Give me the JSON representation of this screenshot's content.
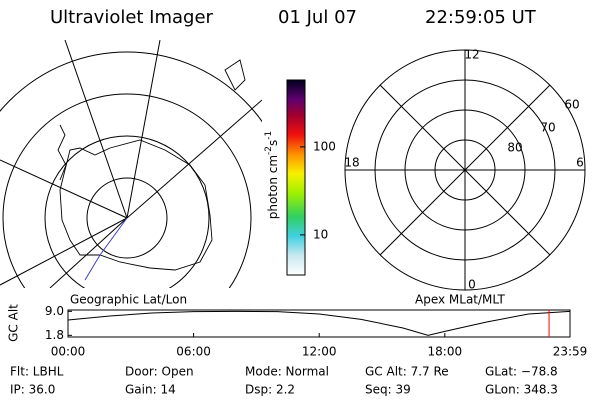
{
  "header": {
    "instrument": "Ultraviolet Imager",
    "date": "01 Jul 07",
    "time": "22:59:05 UT"
  },
  "geographic_panel": {
    "label": "Geographic Lat/Lon"
  },
  "colorbar": {
    "label_parts": [
      "photon cm",
      "-2",
      "s",
      "-1"
    ],
    "lim": [
      3.5,
      575
    ],
    "log": true,
    "ticks": [
      10,
      100
    ]
  },
  "polar_panel": {
    "label": "Apex MLat/MLT",
    "mlt_labels": [
      "12",
      "18",
      "6",
      "0"
    ],
    "lat_labels": [
      "60",
      "70",
      "80"
    ]
  },
  "chart_data": {
    "type": "line",
    "ylabel": "GC Alt",
    "x": [
      0,
      2,
      4,
      6,
      8,
      10,
      12,
      14,
      16,
      17.2,
      18,
      20,
      22,
      23.98
    ],
    "series": [
      {
        "name": "GC Alt",
        "color": "#000000",
        "values": [
          6.4,
          7.6,
          8.5,
          8.9,
          9.0,
          8.9,
          8.2,
          6.6,
          4.0,
          1.8,
          3.0,
          5.8,
          8.2,
          9.0
        ]
      }
    ],
    "xlim": [
      0,
      23.98
    ],
    "xticks": [
      {
        "value": 0,
        "label": "00:00"
      },
      {
        "value": 6,
        "label": "06:00"
      },
      {
        "value": 12,
        "label": "12:00"
      },
      {
        "value": 18,
        "label": "18:00"
      },
      {
        "value": 23.98,
        "label": "23:59"
      }
    ],
    "ylim": [
      1.3,
      9.4
    ],
    "yticks": [
      {
        "value": 9,
        "label": "9.0"
      },
      {
        "value": 1.8,
        "label": "1.8"
      }
    ],
    "marker": {
      "x": 22.98,
      "color": "#ff0000"
    }
  },
  "info": [
    [
      "Flt: LBHL",
      "Door: Open",
      "Mode: Normal",
      "GC Alt: 7.7 Re",
      "GLat: −78.8"
    ],
    [
      "IP: 36.0",
      "Gain: 14",
      "Dsp:    2.2",
      "Seq: 39",
      "GLon: 348.3"
    ]
  ]
}
